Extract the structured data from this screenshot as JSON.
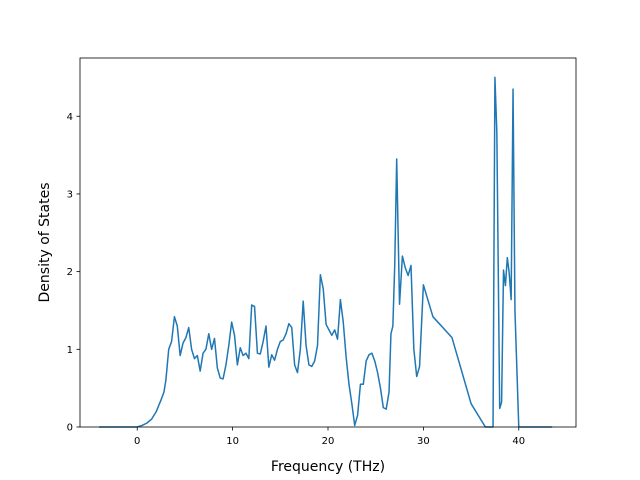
{
  "chart_data": {
    "type": "line",
    "title": "",
    "xlabel": "Frequency (THz)",
    "ylabel": "Density of States",
    "xlim": [
      -6.0,
      46.0
    ],
    "ylim": [
      0,
      4.75
    ],
    "xticks": [
      0,
      10,
      20,
      30,
      40
    ],
    "yticks": [
      0,
      1,
      2,
      3,
      4
    ],
    "grid": false,
    "legend": "none",
    "series": [
      {
        "color": "#1f77b4",
        "x": [
          -4.0,
          -0.5,
          0,
          0.5,
          1.0,
          1.5,
          2.0,
          2.5,
          2.8,
          3.0,
          3.3,
          3.6,
          3.9,
          4.2,
          4.5,
          4.8,
          5.1,
          5.4,
          5.7,
          6.0,
          6.3,
          6.6,
          6.9,
          7.2,
          7.5,
          7.8,
          8.1,
          8.4,
          8.7,
          9.0,
          9.3,
          9.6,
          9.9,
          10.2,
          10.5,
          10.8,
          11.1,
          11.4,
          11.7,
          12.0,
          12.3,
          12.6,
          12.9,
          13.2,
          13.5,
          13.8,
          14.1,
          14.4,
          14.7,
          15.0,
          15.3,
          15.6,
          15.9,
          16.2,
          16.5,
          16.8,
          17.1,
          17.4,
          17.7,
          18.0,
          18.3,
          18.6,
          18.9,
          19.2,
          19.5,
          19.8,
          20.1,
          20.4,
          20.7,
          21.0,
          21.3,
          21.6,
          21.9,
          22.2,
          22.5,
          22.8,
          23.1,
          23.4,
          23.7,
          24.0,
          24.3,
          24.6,
          24.9,
          25.2,
          25.5,
          25.8,
          26.1,
          26.4,
          26.6,
          26.8,
          27.0,
          27.2,
          27.5,
          27.8,
          28.1,
          28.4,
          28.7,
          29.0,
          29.3,
          29.6,
          30.0,
          31.0,
          33.0,
          35.0,
          36.5,
          36.9,
          37.1,
          37.3,
          37.5,
          37.7,
          38.0,
          38.2,
          38.4,
          38.6,
          38.8,
          39.0,
          39.2,
          39.4,
          39.6,
          40.0,
          42.0,
          43.5
        ],
        "y": [
          0,
          0,
          0,
          0.02,
          0.05,
          0.1,
          0.2,
          0.35,
          0.45,
          0.6,
          1.0,
          1.1,
          1.42,
          1.3,
          0.92,
          1.08,
          1.15,
          1.28,
          1.0,
          0.88,
          0.92,
          0.72,
          0.95,
          1.0,
          1.2,
          1.0,
          1.14,
          0.76,
          0.63,
          0.62,
          0.8,
          1.05,
          1.35,
          1.18,
          0.8,
          1.02,
          0.92,
          0.95,
          0.88,
          1.57,
          1.55,
          0.95,
          0.94,
          1.1,
          1.3,
          0.77,
          0.93,
          0.86,
          1.0,
          1.1,
          1.12,
          1.2,
          1.33,
          1.28,
          0.8,
          0.7,
          1.0,
          1.62,
          1.05,
          0.8,
          0.78,
          0.85,
          1.05,
          1.96,
          1.78,
          1.32,
          1.25,
          1.18,
          1.25,
          1.13,
          1.64,
          1.35,
          0.9,
          0.55,
          0.3,
          0.02,
          0.15,
          0.55,
          0.55,
          0.85,
          0.93,
          0.95,
          0.85,
          0.7,
          0.5,
          0.25,
          0.23,
          0.45,
          1.2,
          1.3,
          2.1,
          3.45,
          1.58,
          2.2,
          2.05,
          1.95,
          2.08,
          1.0,
          0.65,
          0.78,
          1.83,
          1.42,
          1.15,
          0.3,
          0,
          0,
          0,
          0,
          4.5,
          3.8,
          0.24,
          0.32,
          2.02,
          1.82,
          2.18,
          1.98,
          1.64,
          4.35,
          1.5,
          0,
          0,
          0
        ]
      }
    ]
  }
}
